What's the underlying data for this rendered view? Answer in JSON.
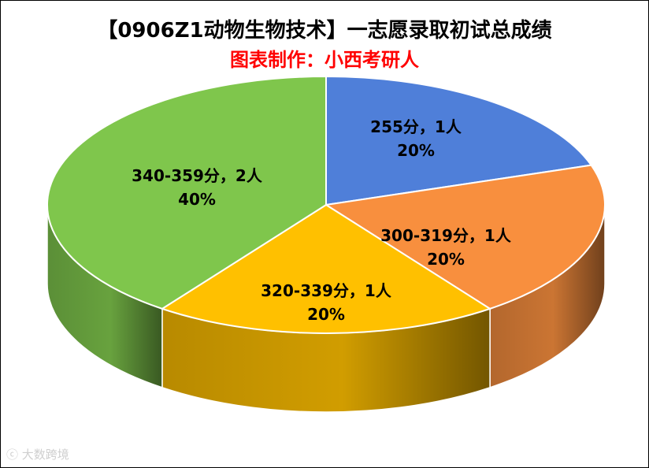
{
  "title": "【0906Z1动物生物技术】一志愿录取初试总成绩",
  "subtitle": "图表制作：小西考研人",
  "watermark": "大数跨境",
  "chart_data": {
    "type": "pie",
    "title": "【0906Z1动物生物技术】一志愿录取初试总成绩",
    "subtitle": "图表制作：小西考研人",
    "legend": "none",
    "slices": [
      {
        "label": "255分，1人",
        "value": 1,
        "percent": "20%",
        "color": "#4f7fd9"
      },
      {
        "label": "300-319分，1人",
        "value": 1,
        "percent": "20%",
        "color": "#f88f3e"
      },
      {
        "label": "320-339分，1人",
        "value": 1,
        "percent": "20%",
        "color": "#ffc000"
      },
      {
        "label": "340-359分，2人",
        "value": 2,
        "percent": "40%",
        "color": "#7fc64c"
      }
    ]
  }
}
